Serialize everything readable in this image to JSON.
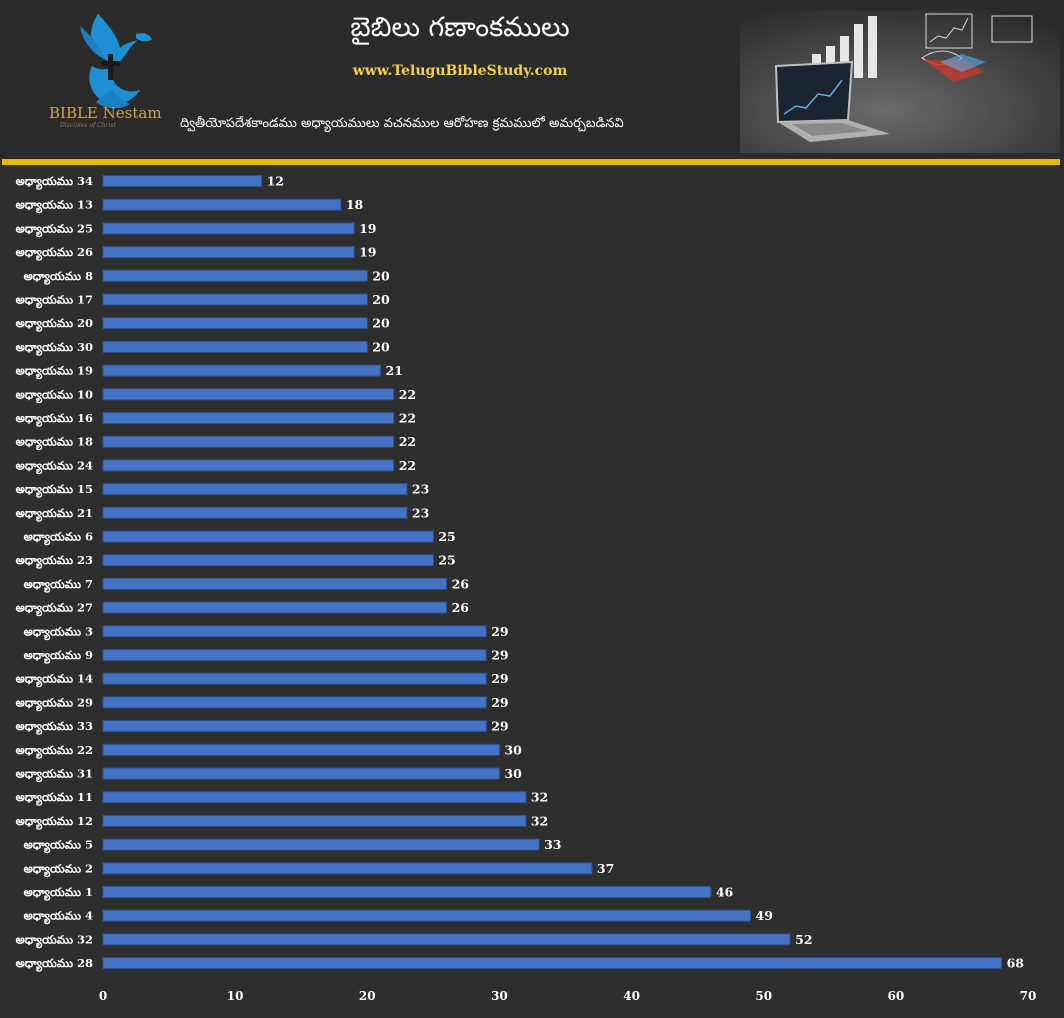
{
  "header": {
    "title": "బైబిలు గణాంకములు",
    "website": "www.TeluguBibleStudy.com",
    "subtitle": "ద్వితీయోపదేశకాండము అధ్యాయములు వచనముల ఆరోహణ క్రమములో అమర్చబడినవి",
    "brand": "BIBLE Nestam",
    "brand_tagline": "Disciples of Christ",
    "logo_icon": "dove-cross-hands-icon",
    "hero_icon": "laptop-charts-icon",
    "accent_color": "#e5b80b",
    "title_color": "#ffffff",
    "website_color": "#f2d24a",
    "brand_color": "#d2a24c"
  },
  "chart_data": {
    "type": "bar",
    "orientation": "horizontal",
    "title": "",
    "xlabel": "",
    "ylabel": "",
    "categories": [
      "అధ్యాయము 34",
      "అధ్యాయము 13",
      "అధ్యాయము 25",
      "అధ్యాయము 26",
      "అధ్యాయము 8",
      "అధ్యాయము 17",
      "అధ్యాయము 20",
      "అధ్యాయము 30",
      "అధ్యాయము 19",
      "అధ్యాయము 10",
      "అధ్యాయము 16",
      "అధ్యాయము 18",
      "అధ్యాయము 24",
      "అధ్యాయము 15",
      "అధ్యాయము 21",
      "అధ్యాయము 6",
      "అధ్యాయము 23",
      "అధ్యాయము 7",
      "అధ్యాయము 27",
      "అధ్యాయము 3",
      "అధ్యాయము 9",
      "అధ్యాయము 14",
      "అధ్యాయము 29",
      "అధ్యాయము 33",
      "అధ్యాయము 22",
      "అధ్యాయము 31",
      "అధ్యాయము 11",
      "అధ్యాయము 12",
      "అధ్యాయము 5",
      "అధ్యాయము 2",
      "అధ్యాయము 1",
      "అధ్యాయము 4",
      "అధ్యాయము 32",
      "అధ్యాయము 28"
    ],
    "values": [
      12,
      18,
      19,
      19,
      20,
      20,
      20,
      20,
      21,
      22,
      22,
      22,
      22,
      23,
      23,
      25,
      25,
      26,
      26,
      29,
      29,
      29,
      29,
      29,
      30,
      30,
      32,
      32,
      33,
      37,
      46,
      49,
      52,
      68
    ],
    "xlim": [
      0,
      70
    ],
    "xticks": [
      0,
      10,
      20,
      30,
      40,
      50,
      60,
      70
    ],
    "data_labels": true,
    "grid": false,
    "legend": "none",
    "bar_color": "#4472c4",
    "bar_edge_color": "#2f528f"
  }
}
